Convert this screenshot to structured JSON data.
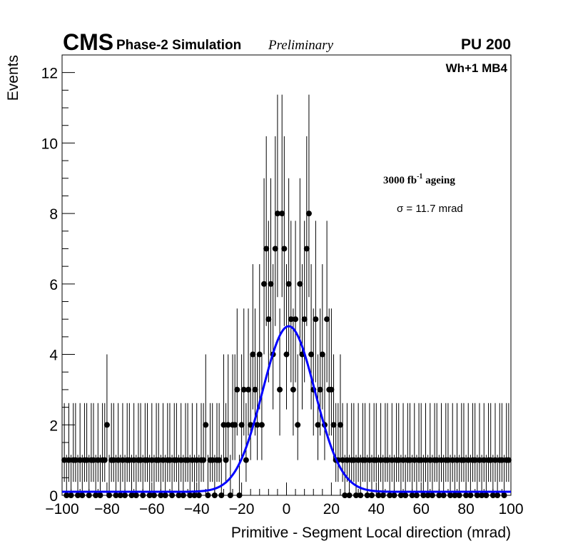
{
  "header": {
    "experiment": "CMS",
    "subtitle": "Phase-2 Simulation",
    "status": "Preliminary",
    "pileup": "PU 200",
    "station": "Wh+1 MB4"
  },
  "annotations": {
    "ageing_main": "3000 fb",
    "ageing_sup": "-1",
    "ageing_tail": " ageing",
    "sigma": "σ = 11.7 mrad"
  },
  "chart_data": {
    "type": "scatter",
    "xlabel": "Primitive - Segment Local direction (mrad)",
    "ylabel": "Events",
    "xlim": [
      -100,
      100
    ],
    "ylim": [
      0,
      12.5
    ],
    "xticks": [
      -100,
      -80,
      -60,
      -40,
      -20,
      0,
      20,
      40,
      60,
      80,
      100
    ],
    "xtick_labels": [
      "−100",
      "−80",
      "−60",
      "−40",
      "−20",
      "0",
      "20",
      "40",
      "60",
      "80",
      "100"
    ],
    "yticks": [
      0,
      2,
      4,
      6,
      8,
      10,
      12
    ],
    "ytick_labels": [
      "0",
      "2",
      "4",
      "6",
      "8",
      "10",
      "12"
    ],
    "grid": false,
    "points": {
      "x": [
        -99,
        -98,
        -97,
        -96,
        -95,
        -94,
        -93,
        -92,
        -91,
        -90,
        -89,
        -88,
        -87,
        -86,
        -85,
        -84,
        -83,
        -82,
        -81,
        -80,
        -79,
        -78,
        -77,
        -76,
        -75,
        -74,
        -73,
        -72,
        -71,
        -70,
        -69,
        -68,
        -67,
        -66,
        -65,
        -64,
        -63,
        -62,
        -61,
        -60,
        -59,
        -58,
        -57,
        -56,
        -55,
        -54,
        -53,
        -52,
        -51,
        -50,
        -49,
        -48,
        -47,
        -46,
        -45,
        -44,
        -43,
        -42,
        -41,
        -40,
        -39,
        -38,
        -37,
        -36,
        -35,
        -34,
        -33,
        -32,
        -31,
        -30,
        -29,
        -28,
        -27,
        -26,
        -25,
        -24,
        -23,
        -22,
        -21,
        -20,
        -19,
        -18,
        -17,
        -16,
        -15,
        -14,
        -13,
        -12,
        -11,
        -10,
        -9,
        -8,
        -7,
        -6,
        -5,
        -4,
        -3,
        -2,
        -1,
        0,
        1,
        2,
        3,
        4,
        5,
        6,
        7,
        8,
        9,
        10,
        11,
        12,
        13,
        14,
        15,
        16,
        17,
        18,
        19,
        20,
        21,
        22,
        23,
        24,
        25,
        26,
        27,
        28,
        29,
        30,
        31,
        32,
        33,
        34,
        35,
        36,
        37,
        38,
        39,
        40,
        41,
        42,
        43,
        44,
        45,
        46,
        47,
        48,
        49,
        50,
        51,
        52,
        53,
        54,
        55,
        56,
        57,
        58,
        59,
        60,
        61,
        62,
        63,
        64,
        65,
        66,
        67,
        68,
        69,
        70,
        71,
        72,
        73,
        74,
        75,
        76,
        77,
        78,
        79,
        80,
        81,
        82,
        83,
        84,
        85,
        86,
        87,
        88,
        89,
        90,
        91,
        92,
        93,
        94,
        95,
        96,
        97,
        98,
        99
      ],
      "y": [
        1,
        0,
        1,
        0,
        1,
        1,
        0,
        1,
        0,
        1,
        1,
        0,
        1,
        1,
        0,
        1,
        0,
        1,
        1,
        2,
        0,
        1,
        1,
        0,
        1,
        0,
        1,
        0,
        1,
        1,
        0,
        1,
        0,
        1,
        1,
        0,
        1,
        1,
        0,
        1,
        0,
        1,
        1,
        0,
        1,
        0,
        1,
        1,
        0,
        1,
        1,
        0,
        1,
        0,
        1,
        1,
        0,
        1,
        0,
        1,
        0,
        1,
        1,
        2,
        0,
        1,
        1,
        0,
        1,
        1,
        0,
        2,
        1,
        2,
        0,
        2,
        2,
        3,
        0,
        2,
        3,
        1,
        3,
        2,
        4,
        3,
        2,
        4,
        2,
        6,
        7,
        5,
        6,
        4,
        7,
        8,
        3,
        8,
        7,
        4,
        6,
        5,
        3,
        5,
        2,
        6,
        4,
        5,
        7,
        8,
        4,
        3,
        5,
        2,
        3,
        4,
        2,
        5,
        3,
        3,
        2,
        1,
        1,
        2,
        1,
        0,
        1,
        0,
        1,
        1,
        0,
        1,
        0,
        1,
        1,
        0,
        1,
        0,
        1,
        1,
        0,
        1,
        0,
        1,
        1,
        0,
        1,
        0,
        1,
        1,
        0,
        1,
        0,
        1,
        1,
        0,
        1,
        0,
        1,
        1,
        0,
        1,
        0,
        1,
        0,
        1,
        1,
        0,
        1,
        0,
        1,
        1,
        0,
        1,
        0,
        1,
        0,
        1,
        1,
        0,
        1,
        0,
        1,
        1,
        0,
        1,
        0,
        1,
        0,
        1,
        1,
        0,
        1,
        0,
        1,
        1,
        0,
        1,
        1
      ]
    },
    "fit": {
      "type": "gaussian",
      "mean": 1,
      "sigma": 11.7,
      "amplitude": 4.7,
      "baseline": 0.1,
      "color": "#0000ff"
    },
    "marker_color": "#000000"
  }
}
